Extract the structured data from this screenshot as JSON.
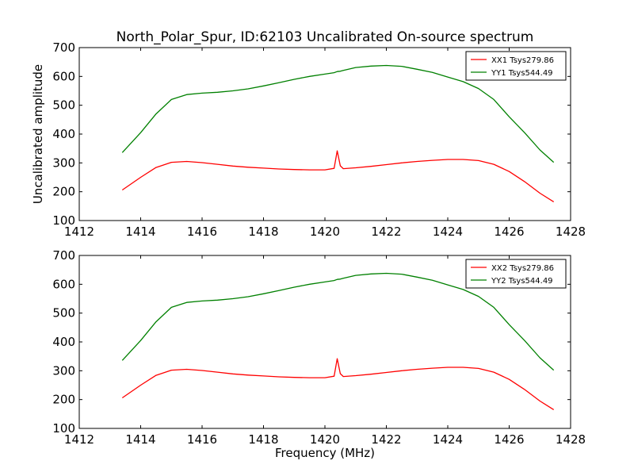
{
  "figure": {
    "title": "North_Polar_Spur, ID:62103 Uncalibrated On-source spectrum"
  },
  "chart_data": [
    {
      "type": "line",
      "title": "North_Polar_Spur, ID:62103 Uncalibrated On-source spectrum",
      "xlabel": "",
      "ylabel": "Uncalibrated amplitude",
      "xlim": [
        1412,
        1428
      ],
      "ylim": [
        100,
        700
      ],
      "xticks": [
        "1412",
        "1414",
        "1416",
        "1418",
        "1420",
        "1422",
        "1424",
        "1426",
        "1428"
      ],
      "yticks": [
        "100",
        "200",
        "300",
        "400",
        "500",
        "600",
        "700"
      ],
      "legend_position": "top-right",
      "x": [
        1413.4,
        1414.0,
        1414.5,
        1415.0,
        1415.5,
        1416.0,
        1416.5,
        1417.0,
        1417.5,
        1418.0,
        1418.5,
        1419.0,
        1419.5,
        1420.0,
        1420.3,
        1420.4,
        1420.5,
        1420.6,
        1421.0,
        1421.5,
        1422.0,
        1422.5,
        1423.0,
        1423.5,
        1424.0,
        1424.5,
        1425.0,
        1425.5,
        1426.0,
        1426.5,
        1427.0,
        1427.45
      ],
      "series": [
        {
          "name": "XX1 Tsys279.86",
          "color": "#ff0000",
          "values": [
            206,
            250,
            284,
            302,
            305,
            301,
            295,
            289,
            285,
            282,
            279,
            277,
            276,
            276,
            281,
            342,
            290,
            280,
            283,
            288,
            294,
            300,
            305,
            309,
            312,
            312,
            308,
            295,
            270,
            235,
            195,
            165
          ]
        },
        {
          "name": "YY1 Tsys544.49",
          "color": "#008000",
          "values": [
            336,
            405,
            470,
            520,
            537,
            542,
            545,
            550,
            557,
            567,
            578,
            590,
            600,
            608,
            613,
            617,
            618,
            621,
            631,
            636,
            638,
            635,
            625,
            614,
            598,
            582,
            558,
            520,
            460,
            405,
            345,
            302
          ]
        }
      ]
    },
    {
      "type": "line",
      "title": "",
      "xlabel": "Frequency (MHz)",
      "ylabel": "",
      "xlim": [
        1412,
        1428
      ],
      "ylim": [
        100,
        700
      ],
      "xticks": [
        "1412",
        "1414",
        "1416",
        "1418",
        "1420",
        "1422",
        "1424",
        "1426",
        "1428"
      ],
      "yticks": [
        "100",
        "200",
        "300",
        "400",
        "500",
        "600",
        "700"
      ],
      "legend_position": "top-right",
      "x": [
        1413.4,
        1414.0,
        1414.5,
        1415.0,
        1415.5,
        1416.0,
        1416.5,
        1417.0,
        1417.5,
        1418.0,
        1418.5,
        1419.0,
        1419.5,
        1420.0,
        1420.3,
        1420.4,
        1420.5,
        1420.6,
        1421.0,
        1421.5,
        1422.0,
        1422.5,
        1423.0,
        1423.5,
        1424.0,
        1424.5,
        1425.0,
        1425.5,
        1426.0,
        1426.5,
        1427.0,
        1427.45
      ],
      "series": [
        {
          "name": "XX2 Tsys279.86",
          "color": "#ff0000",
          "values": [
            206,
            250,
            284,
            302,
            305,
            301,
            295,
            289,
            285,
            282,
            279,
            277,
            276,
            276,
            281,
            342,
            290,
            280,
            283,
            288,
            294,
            300,
            305,
            309,
            312,
            312,
            308,
            295,
            270,
            235,
            195,
            165
          ]
        },
        {
          "name": "YY2 Tsys544.49",
          "color": "#008000",
          "values": [
            336,
            405,
            470,
            520,
            537,
            542,
            545,
            550,
            557,
            567,
            578,
            590,
            600,
            608,
            613,
            617,
            618,
            621,
            631,
            636,
            638,
            635,
            625,
            614,
            598,
            582,
            558,
            520,
            460,
            405,
            345,
            302
          ]
        }
      ]
    }
  ]
}
